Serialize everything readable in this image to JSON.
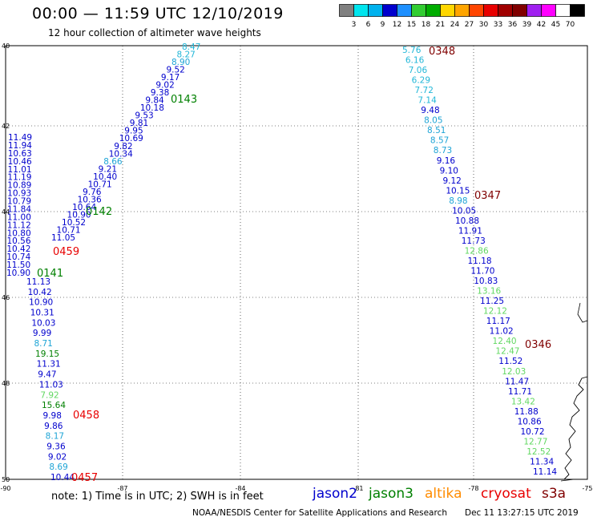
{
  "header": {
    "title": "00:00 — 11:59 UTC 12/10/2019",
    "subtitle": "12 hour collection of altimeter wave heights"
  },
  "colorbar": {
    "unit": "(ft)",
    "colors": [
      "#808080",
      "#00e5ee",
      "#00b2ee",
      "#0000cd",
      "#1e90ff",
      "#32cd32",
      "#00ad00",
      "#ffd700",
      "#ffa500",
      "#ff4500",
      "#e80000",
      "#a00000",
      "#800000",
      "#a020f0",
      "#ff00ff",
      "#ffffff",
      "#000000"
    ],
    "labels": [
      "3",
      "6",
      "9",
      "12",
      "15",
      "18",
      "21",
      "24",
      "27",
      "30",
      "33",
      "36",
      "39",
      "42",
      "45",
      "70"
    ]
  },
  "axes": {
    "lat_labels": [
      "40",
      "42",
      "44",
      "46",
      "48",
      "50"
    ],
    "lon_labels": [
      "-90",
      "-87",
      "-84",
      "-81",
      "-78",
      "-75"
    ]
  },
  "colors": {
    "jason2": "#0000cd",
    "jason3": "#008000",
    "altika": "#ff8c00",
    "cryosat": "#e80000",
    "s3a": "#800000",
    "light_blue": "#1ea4d6",
    "cyan": "#22b7d8",
    "light_green": "#62d862"
  },
  "tracks": [
    {
      "group": "A",
      "values": [
        {
          "v": "8.47",
          "c": "cyan"
        },
        {
          "v": "8.27",
          "c": "cyan"
        },
        {
          "v": "8.90",
          "c": "light_blue"
        },
        {
          "v": "9.52",
          "c": "jason2"
        },
        {
          "v": "9.17",
          "c": "jason2"
        },
        {
          "v": "9.02",
          "c": "jason2"
        },
        {
          "v": "9.38",
          "c": "jason2"
        },
        {
          "v": "9.84",
          "c": "jason2"
        },
        {
          "v": "10.18",
          "c": "jason2"
        },
        {
          "v": "9.53",
          "c": "jason2"
        },
        {
          "v": "9.81",
          "c": "jason2"
        },
        {
          "v": "9.95",
          "c": "jason2"
        },
        {
          "v": "10.69",
          "c": "jason2"
        },
        {
          "v": "9.82",
          "c": "jason2"
        },
        {
          "v": "10.34",
          "c": "jason2"
        },
        {
          "v": "8.66",
          "c": "light_blue"
        },
        {
          "v": "9.21",
          "c": "jason2"
        },
        {
          "v": "10.40",
          "c": "jason2"
        },
        {
          "v": "10.71",
          "c": "jason2"
        },
        {
          "v": "9.76",
          "c": "jason2"
        },
        {
          "v": "10.36",
          "c": "jason2"
        },
        {
          "v": "10.64",
          "c": "jason2"
        },
        {
          "v": "10.90",
          "c": "jason2"
        },
        {
          "v": "10.52",
          "c": "jason2"
        },
        {
          "v": "10.71",
          "c": "jason2"
        },
        {
          "v": "11.05",
          "c": "jason2"
        }
      ]
    },
    {
      "group": "B",
      "values": [
        {
          "v": "11.49",
          "c": "jason2"
        },
        {
          "v": "11.94",
          "c": "jason2"
        },
        {
          "v": "10.63",
          "c": "jason2"
        },
        {
          "v": "10.46",
          "c": "jason2"
        },
        {
          "v": "11.01",
          "c": "jason2"
        },
        {
          "v": "11.19",
          "c": "jason2"
        },
        {
          "v": "10.89",
          "c": "jason2"
        },
        {
          "v": "10.93",
          "c": "jason2"
        },
        {
          "v": "10.79",
          "c": "jason2"
        },
        {
          "v": "11.84",
          "c": "jason2"
        },
        {
          "v": "11.00",
          "c": "jason2"
        },
        {
          "v": "11.12",
          "c": "jason2"
        },
        {
          "v": "10.80",
          "c": "jason2"
        },
        {
          "v": "10.56",
          "c": "jason2"
        },
        {
          "v": "10.42",
          "c": "jason2"
        },
        {
          "v": "10.74",
          "c": "jason2"
        },
        {
          "v": "11.50",
          "c": "jason2"
        },
        {
          "v": "10.90",
          "c": "jason2"
        }
      ]
    },
    {
      "group": "C",
      "values": [
        {
          "v": "11.13",
          "c": "jason2"
        },
        {
          "v": "10.42",
          "c": "jason2"
        },
        {
          "v": "10.90",
          "c": "jason2"
        },
        {
          "v": "10.31",
          "c": "jason2"
        },
        {
          "v": "10.03",
          "c": "jason2"
        },
        {
          "v": "9.99",
          "c": "jason2"
        },
        {
          "v": "8.71",
          "c": "light_blue"
        },
        {
          "v": "19.15",
          "c": "jason3"
        },
        {
          "v": "11.31",
          "c": "jason2"
        },
        {
          "v": "9.47",
          "c": "jason2"
        },
        {
          "v": "11.03",
          "c": "jason2"
        },
        {
          "v": "7.92",
          "c": "light_green"
        },
        {
          "v": "15.64",
          "c": "jason3"
        },
        {
          "v": "9.98",
          "c": "jason2"
        },
        {
          "v": "9.86",
          "c": "jason2"
        },
        {
          "v": "8.17",
          "c": "light_blue"
        },
        {
          "v": "9.36",
          "c": "jason2"
        },
        {
          "v": "9.02",
          "c": "jason2"
        },
        {
          "v": "8.69",
          "c": "light_blue"
        },
        {
          "v": "10.44",
          "c": "jason2"
        }
      ]
    },
    {
      "group": "D",
      "values": [
        {
          "v": "5.76",
          "c": "cyan"
        },
        {
          "v": "6.16",
          "c": "cyan"
        },
        {
          "v": "7.06",
          "c": "cyan"
        },
        {
          "v": "6.29",
          "c": "cyan"
        },
        {
          "v": "7.72",
          "c": "cyan"
        },
        {
          "v": "7.14",
          "c": "cyan"
        },
        {
          "v": "9.48",
          "c": "jason2"
        },
        {
          "v": "8.05",
          "c": "light_blue"
        },
        {
          "v": "8.51",
          "c": "light_blue"
        },
        {
          "v": "8.57",
          "c": "light_blue"
        },
        {
          "v": "8.73",
          "c": "light_blue"
        },
        {
          "v": "9.16",
          "c": "jason2"
        },
        {
          "v": "9.10",
          "c": "jason2"
        },
        {
          "v": "9.12",
          "c": "jason2"
        },
        {
          "v": "10.15",
          "c": "jason2"
        },
        {
          "v": "8.98",
          "c": "light_blue"
        },
        {
          "v": "10.05",
          "c": "jason2"
        },
        {
          "v": "10.88",
          "c": "jason2"
        },
        {
          "v": "11.91",
          "c": "jason2"
        },
        {
          "v": "11.73",
          "c": "jason2"
        },
        {
          "v": "12.86",
          "c": "light_green"
        },
        {
          "v": "11.18",
          "c": "jason2"
        },
        {
          "v": "11.70",
          "c": "jason2"
        },
        {
          "v": "10.83",
          "c": "jason2"
        },
        {
          "v": "13.16",
          "c": "light_green"
        },
        {
          "v": "11.25",
          "c": "jason2"
        },
        {
          "v": "12.12",
          "c": "light_green"
        },
        {
          "v": "11.17",
          "c": "jason2"
        },
        {
          "v": "11.02",
          "c": "jason2"
        },
        {
          "v": "12.40",
          "c": "light_green"
        },
        {
          "v": "12.47",
          "c": "light_green"
        },
        {
          "v": "11.52",
          "c": "jason2"
        },
        {
          "v": "12.03",
          "c": "light_green"
        },
        {
          "v": "11.47",
          "c": "jason2"
        },
        {
          "v": "11.71",
          "c": "jason2"
        },
        {
          "v": "13.42",
          "c": "light_green"
        },
        {
          "v": "11.88",
          "c": "jason2"
        },
        {
          "v": "10.86",
          "c": "jason2"
        },
        {
          "v": "10.72",
          "c": "jason2"
        },
        {
          "v": "12.77",
          "c": "light_green"
        },
        {
          "v": "12.52",
          "c": "light_green"
        },
        {
          "v": "11.34",
          "c": "jason2"
        },
        {
          "v": "11.14",
          "c": "jason2"
        }
      ]
    }
  ],
  "pass_labels": [
    {
      "text": "0143",
      "c": "jason3"
    },
    {
      "text": "0142",
      "c": "jason3"
    },
    {
      "text": "0459",
      "c": "cryosat"
    },
    {
      "text": "0141",
      "c": "jason3"
    },
    {
      "text": "0458",
      "c": "cryosat"
    },
    {
      "text": "0457",
      "c": "cryosat"
    },
    {
      "text": "0348",
      "c": "s3a"
    },
    {
      "text": "0347",
      "c": "s3a"
    },
    {
      "text": "0346",
      "c": "s3a"
    }
  ],
  "footer": {
    "note": "note: 1) Time is in UTC; 2) SWH is in feet",
    "satellites": [
      {
        "name": "jason2",
        "c": "jason2"
      },
      {
        "name": "jason3",
        "c": "jason3"
      },
      {
        "name": "altika",
        "c": "altika"
      },
      {
        "name": "cryosat",
        "c": "cryosat"
      },
      {
        "name": "s3a",
        "c": "s3a"
      }
    ],
    "credit": "NOAA/NESDIS Center for Satellite Applications and Research",
    "timestamp": "Dec 11 13:27:15 UTC 2019"
  }
}
